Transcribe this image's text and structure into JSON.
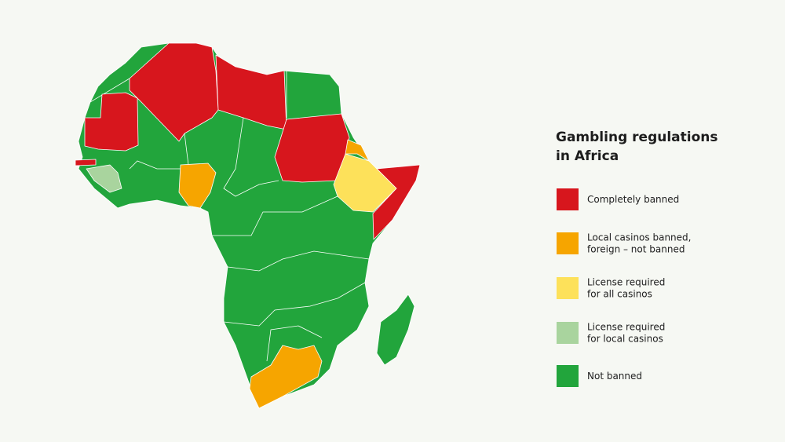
{
  "title": [
    "Gambling regulations",
    "in Africa"
  ],
  "legend": {
    "items": [
      {
        "label": [
          "Completely banned"
        ],
        "color": "#d7161d"
      },
      {
        "label": [
          "Local casinos banned,",
          "foreign – not banned"
        ],
        "color": "#f6a500"
      },
      {
        "label": [
          "License required",
          "for all casinos"
        ],
        "color": "#fde15a"
      },
      {
        "label": [
          "License required",
          "for local casinos"
        ],
        "color": "#a9d49e"
      },
      {
        "label": [
          "Not banned"
        ],
        "color": "#22a53c"
      }
    ]
  }
}
